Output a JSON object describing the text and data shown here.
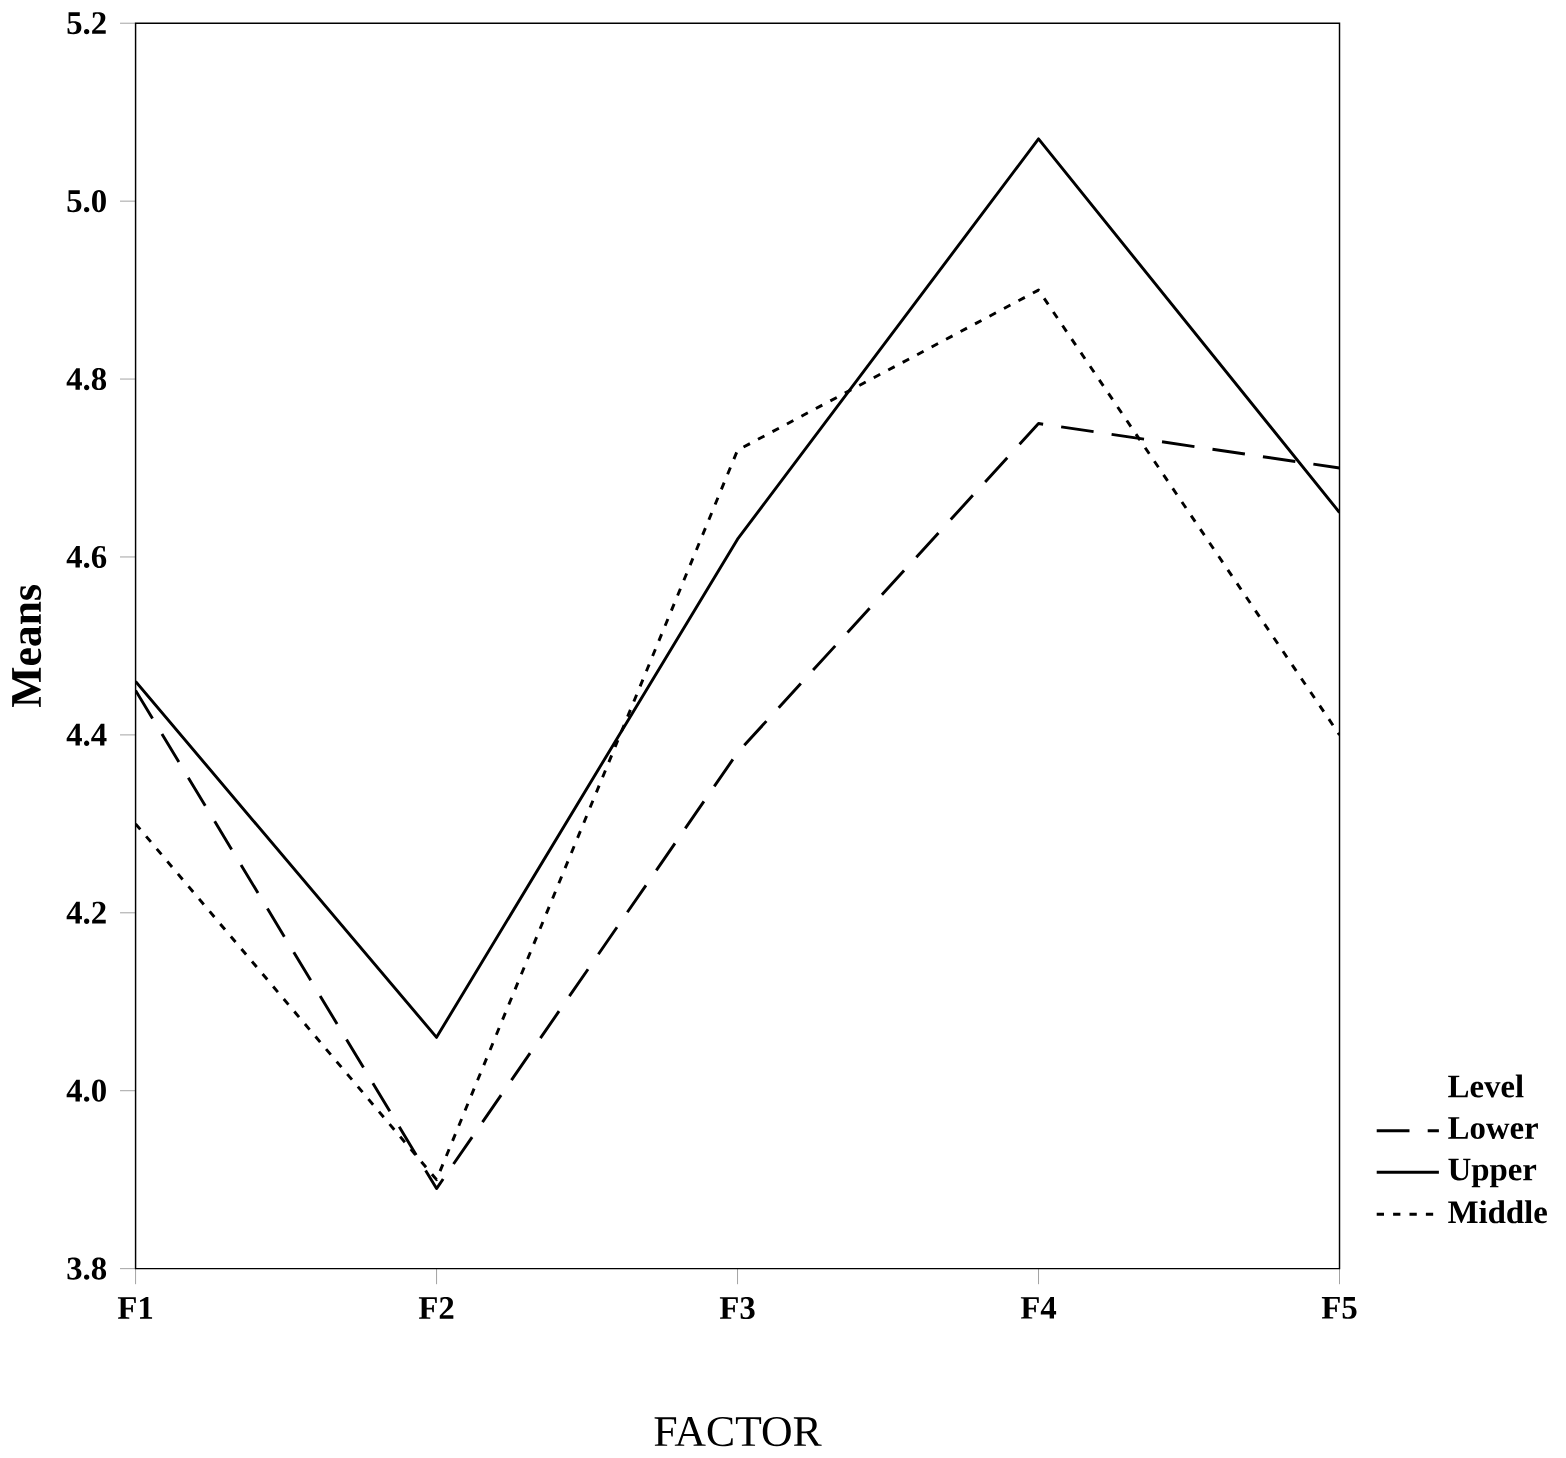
{
  "chart_data": {
    "type": "line",
    "xlabel": "FACTOR",
    "ylabel": "Means",
    "legend_title": "Level",
    "legend": "right",
    "marker": "none",
    "categories": [
      "F1",
      "F2",
      "F3",
      "F4",
      "F5"
    ],
    "ylim": [
      3.8,
      5.2
    ],
    "yticks": [
      {
        "value": 3.8,
        "label": "3.8"
      },
      {
        "value": 4.0,
        "label": "4.0"
      },
      {
        "value": 4.2,
        "label": "4.2"
      },
      {
        "value": 4.4,
        "label": "4.4"
      },
      {
        "value": 4.6,
        "label": "4.6"
      },
      {
        "value": 4.8,
        "label": "4.8"
      },
      {
        "value": 5.0,
        "label": "5.0"
      },
      {
        "value": 5.2,
        "label": "5.2"
      }
    ],
    "series": [
      {
        "name": "Lower",
        "color": "#000000",
        "line_style": "dashed",
        "values": [
          4.45,
          3.89,
          4.38,
          4.75,
          4.7
        ]
      },
      {
        "name": "Upper",
        "color": "#000000",
        "line_style": "solid",
        "values": [
          4.46,
          4.06,
          4.62,
          5.07,
          4.65
        ]
      },
      {
        "name": "Middle",
        "color": "#000000",
        "line_style": "dotted",
        "values": [
          4.3,
          3.9,
          4.72,
          4.9,
          4.4
        ]
      }
    ]
  }
}
